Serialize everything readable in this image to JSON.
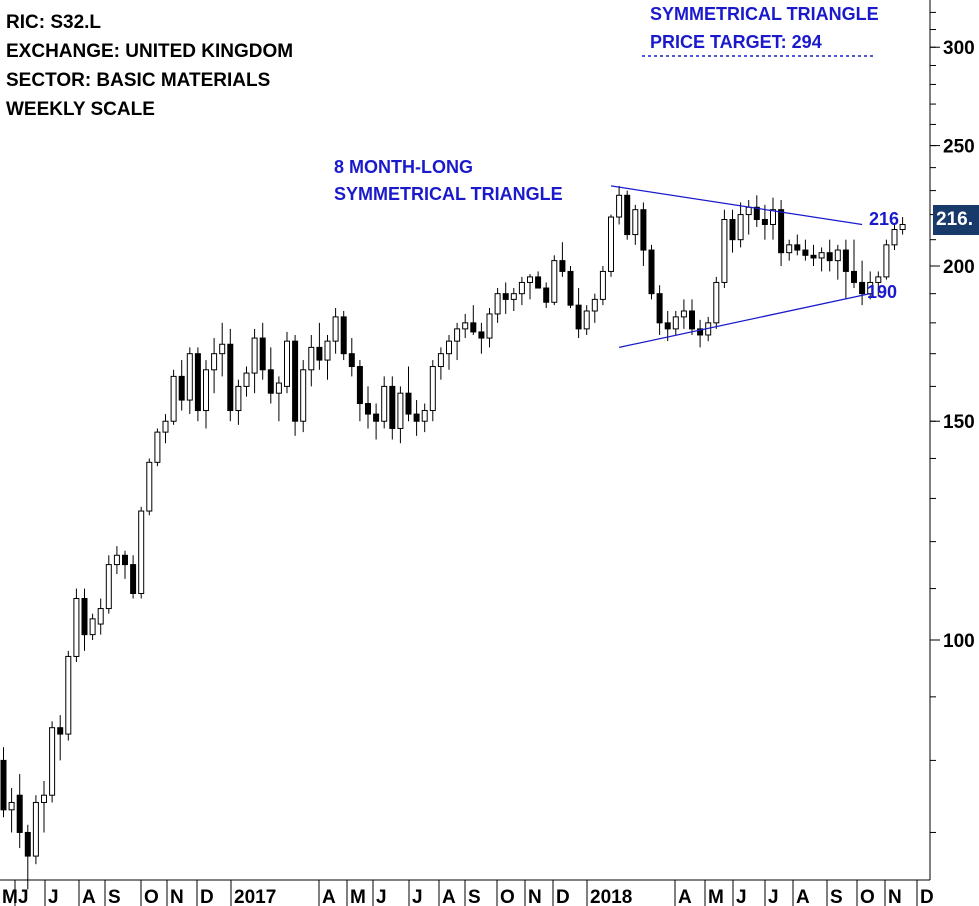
{
  "info": {
    "ric": "RIC: S32.L",
    "exchange": "EXCHANGE: UNITED KINGDOM",
    "sector": "SECTOR: BASIC MATERIALS",
    "scale": "WEEKLY SCALE"
  },
  "annotations": {
    "target_line1": "SYMMETRICAL TRIANGLE",
    "target_line2": "PRICE TARGET: 294",
    "pattern_line1": "8 MONTH-LONG",
    "pattern_line2": "SYMMETRICAL TRIANGLE",
    "upper_level": "216",
    "lower_level": "190",
    "last_price": "216.",
    "accent_color": "#1a1acc",
    "badge_color": "#173a6b"
  },
  "chart_data": {
    "type": "candlestick",
    "scale": "log",
    "ylim": [
      60,
      320
    ],
    "y_ticks": [
      100,
      150,
      200,
      250,
      300
    ],
    "x_tick_labels": [
      "M",
      "J",
      "J",
      "A",
      "S",
      "O",
      "N",
      "D",
      "2017",
      "A",
      "M",
      "J",
      "J",
      "A",
      "S",
      "O",
      "N",
      "D",
      "2018",
      "A",
      "M",
      "J",
      "J",
      "A",
      "S",
      "O",
      "N",
      "D"
    ],
    "candles": [
      [
        80,
        82,
        72,
        73
      ],
      [
        73,
        76,
        70,
        74
      ],
      [
        75,
        78,
        68,
        70
      ],
      [
        70,
        71,
        63,
        67
      ],
      [
        67,
        75,
        66,
        74
      ],
      [
        74,
        77,
        70,
        75
      ],
      [
        75,
        86,
        74,
        85
      ],
      [
        85,
        87,
        80,
        84
      ],
      [
        84,
        98,
        83,
        97
      ],
      [
        97,
        110,
        96,
        108
      ],
      [
        108,
        110,
        98,
        101
      ],
      [
        101,
        105,
        100,
        104
      ],
      [
        103,
        108,
        101,
        106
      ],
      [
        106,
        117,
        105,
        115
      ],
      [
        115,
        119,
        113,
        117
      ],
      [
        117,
        118,
        112,
        115
      ],
      [
        115,
        117,
        108,
        109
      ],
      [
        109,
        128,
        108,
        127
      ],
      [
        127,
        140,
        126,
        139
      ],
      [
        139,
        148,
        138,
        147
      ],
      [
        147,
        152,
        144,
        150
      ],
      [
        150,
        165,
        149,
        163
      ],
      [
        163,
        168,
        153,
        156
      ],
      [
        156,
        172,
        152,
        170
      ],
      [
        170,
        172,
        150,
        153
      ],
      [
        153,
        168,
        148,
        165
      ],
      [
        165,
        175,
        158,
        170
      ],
      [
        170,
        180,
        163,
        173
      ],
      [
        173,
        178,
        150,
        153
      ],
      [
        153,
        162,
        149,
        160
      ],
      [
        160,
        166,
        157,
        164
      ],
      [
        164,
        178,
        158,
        175
      ],
      [
        175,
        180,
        162,
        165
      ],
      [
        165,
        172,
        155,
        158
      ],
      [
        158,
        163,
        150,
        161
      ],
      [
        160,
        177,
        158,
        174
      ],
      [
        174,
        176,
        146,
        150
      ],
      [
        150,
        168,
        147,
        165
      ],
      [
        165,
        176,
        160,
        172
      ],
      [
        172,
        180,
        165,
        168
      ],
      [
        168,
        176,
        162,
        174
      ],
      [
        174,
        185,
        170,
        182
      ],
      [
        182,
        184,
        168,
        170
      ],
      [
        170,
        175,
        163,
        166
      ],
      [
        166,
        168,
        150,
        155
      ],
      [
        155,
        160,
        148,
        152
      ],
      [
        152,
        155,
        145,
        150
      ],
      [
        150,
        163,
        148,
        160
      ],
      [
        160,
        163,
        145,
        148
      ],
      [
        148,
        160,
        144,
        158
      ],
      [
        158,
        166,
        150,
        152
      ],
      [
        152,
        156,
        146,
        150
      ],
      [
        150,
        155,
        147,
        153
      ],
      [
        153,
        168,
        150,
        166
      ],
      [
        166,
        172,
        162,
        170
      ],
      [
        170,
        176,
        165,
        174
      ],
      [
        174,
        180,
        168,
        178
      ],
      [
        178,
        183,
        175,
        180
      ],
      [
        180,
        186,
        176,
        177
      ],
      [
        177,
        180,
        170,
        175
      ],
      [
        175,
        185,
        172,
        183
      ],
      [
        183,
        192,
        180,
        190
      ],
      [
        190,
        194,
        183,
        188
      ],
      [
        188,
        192,
        184,
        190
      ],
      [
        190,
        196,
        186,
        194
      ],
      [
        194,
        197,
        188,
        196
      ],
      [
        196,
        198,
        193,
        192
      ],
      [
        192,
        194,
        185,
        187
      ],
      [
        187,
        204,
        186,
        202
      ],
      [
        202,
        209,
        196,
        198
      ],
      [
        198,
        200,
        185,
        186
      ],
      [
        186,
        192,
        175,
        178
      ],
      [
        178,
        186,
        176,
        184
      ],
      [
        184,
        190,
        180,
        188
      ],
      [
        188,
        200,
        186,
        198
      ],
      [
        198,
        220,
        196,
        219
      ],
      [
        219,
        232,
        216,
        228
      ],
      [
        228,
        230,
        210,
        212
      ],
      [
        212,
        224,
        208,
        222
      ],
      [
        222,
        225,
        200,
        206
      ],
      [
        206,
        208,
        188,
        190
      ],
      [
        190,
        193,
        176,
        180
      ],
      [
        180,
        184,
        174,
        178
      ],
      [
        178,
        184,
        176,
        182
      ],
      [
        182,
        188,
        178,
        184
      ],
      [
        184,
        188,
        176,
        178
      ],
      [
        178,
        181,
        172,
        176
      ],
      [
        176,
        182,
        174,
        180
      ],
      [
        180,
        196,
        178,
        194
      ],
      [
        194,
        222,
        192,
        218
      ],
      [
        218,
        222,
        205,
        210
      ],
      [
        210,
        225,
        207,
        220
      ],
      [
        220,
        226,
        212,
        223
      ],
      [
        223,
        228,
        215,
        218
      ],
      [
        218,
        224,
        210,
        216
      ],
      [
        216,
        227,
        210,
        222
      ],
      [
        222,
        226,
        200,
        205
      ],
      [
        205,
        210,
        202,
        208
      ],
      [
        208,
        212,
        204,
        206
      ],
      [
        206,
        210,
        202,
        204
      ],
      [
        204,
        208,
        200,
        203
      ],
      [
        203,
        207,
        198,
        205
      ],
      [
        205,
        210,
        198,
        202
      ],
      [
        202,
        208,
        195,
        206
      ],
      [
        206,
        210,
        188,
        198
      ],
      [
        198,
        210,
        192,
        194
      ],
      [
        194,
        202,
        186,
        190
      ],
      [
        190,
        198,
        188,
        194
      ],
      [
        194,
        198,
        189,
        196
      ],
      [
        196,
        210,
        195,
        208
      ],
      [
        208,
        216,
        206,
        214
      ],
      [
        214,
        219,
        212,
        216
      ]
    ],
    "trendlines": [
      {
        "name": "upper",
        "points": [
          [
            75,
            232
          ],
          [
            106,
            216
          ]
        ]
      },
      {
        "name": "lower",
        "points": [
          [
            76,
            172
          ],
          [
            107,
            190
          ]
        ]
      }
    ]
  }
}
